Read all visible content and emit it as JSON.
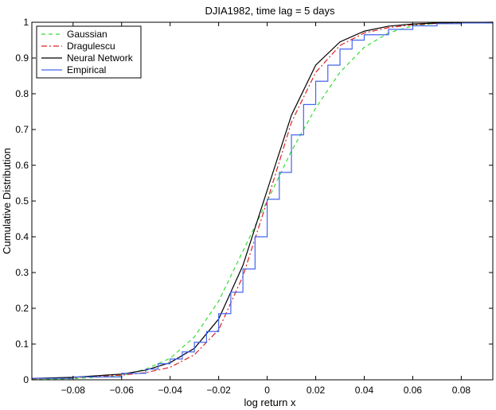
{
  "chart_data": {
    "type": "line",
    "title": "DJIA1982, time lag = 5 days",
    "xlabel": "log return x",
    "ylabel": "Cumulative Distribution",
    "xlim": [
      -0.097,
      0.093
    ],
    "ylim": [
      0,
      1
    ],
    "grid": false,
    "legend_position": "top-left",
    "x_ticks": [
      -0.08,
      -0.06,
      -0.04,
      -0.02,
      0,
      0.02,
      0.04,
      0.06,
      0.08
    ],
    "x_tick_labels": [
      "−0.08",
      "−0.06",
      "−0.04",
      "−0.02",
      "0",
      "0.02",
      "0.04",
      "0.06",
      "0.08"
    ],
    "y_ticks": [
      0,
      0.1,
      0.2,
      0.3,
      0.4,
      0.5,
      0.6,
      0.7,
      0.8,
      0.9,
      1
    ],
    "y_tick_labels": [
      "0",
      "0.1",
      "0.2",
      "0.3",
      "0.4",
      "0.5",
      "0.6",
      "0.7",
      "0.8",
      "0.9",
      "1"
    ],
    "series": [
      {
        "name": "Gaussian",
        "color": "#33dd33",
        "style": "dashed",
        "x": [
          -0.097,
          -0.08,
          -0.06,
          -0.05,
          -0.04,
          -0.03,
          -0.02,
          -0.01,
          0,
          0.01,
          0.02,
          0.03,
          0.04,
          0.05,
          0.06,
          0.07,
          0.08,
          0.093
        ],
        "y": [
          0.001,
          0.003,
          0.012,
          0.03,
          0.06,
          0.12,
          0.22,
          0.36,
          0.5,
          0.64,
          0.76,
          0.86,
          0.93,
          0.97,
          0.99,
          0.997,
          0.999,
          1.0
        ]
      },
      {
        "name": "Dragulescu",
        "color": "#dd2222",
        "style": "dashdot",
        "x": [
          -0.097,
          -0.08,
          -0.06,
          -0.05,
          -0.04,
          -0.03,
          -0.02,
          -0.01,
          0,
          0.01,
          0.02,
          0.03,
          0.04,
          0.05,
          0.06,
          0.07,
          0.08,
          0.093
        ],
        "y": [
          0.003,
          0.006,
          0.013,
          0.02,
          0.035,
          0.07,
          0.14,
          0.29,
          0.5,
          0.72,
          0.86,
          0.935,
          0.97,
          0.985,
          0.993,
          0.997,
          0.999,
          1.0
        ]
      },
      {
        "name": "Neural Network",
        "color": "#000000",
        "style": "solid",
        "x": [
          -0.097,
          -0.08,
          -0.06,
          -0.05,
          -0.04,
          -0.03,
          -0.02,
          -0.01,
          0,
          0.01,
          0.02,
          0.03,
          0.04,
          0.05,
          0.06,
          0.07,
          0.08,
          0.093
        ],
        "y": [
          0.004,
          0.007,
          0.016,
          0.027,
          0.048,
          0.088,
          0.17,
          0.32,
          0.53,
          0.74,
          0.88,
          0.945,
          0.975,
          0.989,
          0.995,
          0.998,
          0.999,
          1.0
        ]
      },
      {
        "name": "Empirical",
        "color": "#4466ee",
        "style": "steps",
        "x": [
          -0.097,
          -0.08,
          -0.06,
          -0.05,
          -0.045,
          -0.04,
          -0.035,
          -0.03,
          -0.025,
          -0.02,
          -0.015,
          -0.01,
          -0.005,
          0,
          0.005,
          0.01,
          0.015,
          0.02,
          0.025,
          0.03,
          0.035,
          0.04,
          0.05,
          0.06,
          0.07,
          0.08,
          0.093
        ],
        "y": [
          0.004,
          0.008,
          0.018,
          0.03,
          0.045,
          0.058,
          0.078,
          0.105,
          0.135,
          0.185,
          0.245,
          0.31,
          0.4,
          0.505,
          0.58,
          0.685,
          0.77,
          0.835,
          0.88,
          0.925,
          0.95,
          0.965,
          0.98,
          0.99,
          0.996,
          0.998,
          1.0
        ]
      }
    ]
  }
}
